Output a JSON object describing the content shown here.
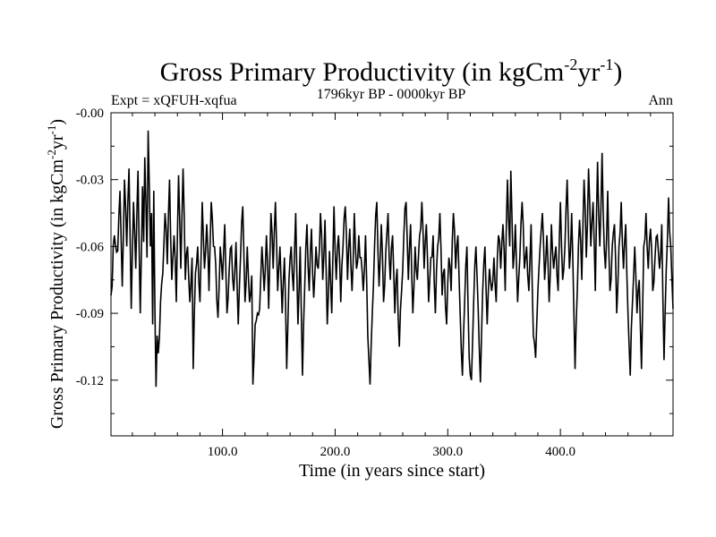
{
  "chart_data": {
    "type": "line",
    "title_main": "Gross Primary Productivity (in kgCm",
    "title_sup1": "-2",
    "title_mid": "yr",
    "title_sup2": "-1",
    "title_end": ")",
    "subtitle_left": "Expt = xQFUH-xqfua",
    "subtitle_center": "1796kyr BP - 0000kyr BP",
    "subtitle_right": "Ann",
    "xlabel": "Time (in years since start)",
    "ylabel_main": "Gross Primary Productivity (in kgCm",
    "ylabel_sup1": "-2",
    "ylabel_mid": "yr",
    "ylabel_sup2": "-1",
    "ylabel_end": ")",
    "xlim": [
      1,
      500
    ],
    "ylim": [
      -0.145,
      0.0
    ],
    "xticks": [
      100,
      200,
      300,
      400
    ],
    "xtick_labels": [
      "100.0",
      "200.0",
      "300.0",
      "400.0"
    ],
    "yticks": [
      0.0,
      -0.03,
      -0.06,
      -0.09,
      -0.12
    ],
    "ytick_labels": [
      "-0.00",
      "-0.03",
      "-0.06",
      "-0.09",
      "-0.12"
    ],
    "anchors": [
      [
        1,
        -0.082
      ],
      [
        4,
        -0.055
      ],
      [
        7,
        -0.062
      ],
      [
        9,
        -0.035
      ],
      [
        11,
        -0.078
      ],
      [
        13,
        -0.03
      ],
      [
        15,
        -0.06
      ],
      [
        17,
        -0.025
      ],
      [
        19,
        -0.088
      ],
      [
        21,
        -0.04
      ],
      [
        23,
        -0.07
      ],
      [
        25,
        -0.026
      ],
      [
        27,
        -0.09
      ],
      [
        29,
        -0.033
      ],
      [
        30,
        -0.058
      ],
      [
        31,
        -0.02
      ],
      [
        33,
        -0.065
      ],
      [
        34,
        -0.008
      ],
      [
        36,
        -0.06
      ],
      [
        37,
        -0.045
      ],
      [
        38,
        -0.095
      ],
      [
        39,
        -0.035
      ],
      [
        40,
        -0.088
      ],
      [
        41,
        -0.123
      ],
      [
        42,
        -0.1
      ],
      [
        43,
        -0.108
      ],
      [
        45,
        -0.085
      ],
      [
        47,
        -0.072
      ],
      [
        49,
        -0.045
      ],
      [
        51,
        -0.068
      ],
      [
        53,
        -0.03
      ],
      [
        55,
        -0.075
      ],
      [
        57,
        -0.055
      ],
      [
        59,
        -0.085
      ],
      [
        61,
        -0.028
      ],
      [
        63,
        -0.07
      ],
      [
        65,
        -0.025
      ],
      [
        67,
        -0.075
      ],
      [
        69,
        -0.06
      ],
      [
        71,
        -0.085
      ],
      [
        73,
        -0.065
      ],
      [
        74,
        -0.115
      ],
      [
        76,
        -0.072
      ],
      [
        78,
        -0.06
      ],
      [
        80,
        -0.085
      ],
      [
        82,
        -0.04
      ],
      [
        84,
        -0.07
      ],
      [
        86,
        -0.05
      ],
      [
        88,
        -0.08
      ],
      [
        90,
        -0.04
      ],
      [
        92,
        -0.06
      ],
      [
        94,
        -0.068
      ],
      [
        96,
        -0.092
      ],
      [
        98,
        -0.06
      ],
      [
        100,
        -0.075
      ],
      [
        102,
        -0.05
      ],
      [
        104,
        -0.09
      ],
      [
        106,
        -0.07
      ],
      [
        108,
        -0.06
      ],
      [
        110,
        -0.08
      ],
      [
        112,
        -0.058
      ],
      [
        114,
        -0.095
      ],
      [
        116,
        -0.065
      ],
      [
        118,
        -0.042
      ],
      [
        120,
        -0.085
      ],
      [
        122,
        -0.06
      ],
      [
        124,
        -0.085
      ],
      [
        126,
        -0.073
      ],
      [
        127,
        -0.122
      ],
      [
        129,
        -0.095
      ],
      [
        131,
        -0.09
      ],
      [
        133,
        -0.088
      ],
      [
        135,
        -0.06
      ],
      [
        137,
        -0.08
      ],
      [
        139,
        -0.055
      ],
      [
        141,
        -0.088
      ],
      [
        143,
        -0.045
      ],
      [
        145,
        -0.07
      ],
      [
        147,
        -0.04
      ],
      [
        149,
        -0.08
      ],
      [
        151,
        -0.06
      ],
      [
        153,
        -0.09
      ],
      [
        155,
        -0.065
      ],
      [
        157,
        -0.115
      ],
      [
        159,
        -0.075
      ],
      [
        161,
        -0.06
      ],
      [
        163,
        -0.08
      ],
      [
        165,
        -0.045
      ],
      [
        167,
        -0.095
      ],
      [
        169,
        -0.06
      ],
      [
        171,
        -0.118
      ],
      [
        173,
        -0.078
      ],
      [
        175,
        -0.05
      ],
      [
        177,
        -0.08
      ],
      [
        179,
        -0.052
      ],
      [
        181,
        -0.083
      ],
      [
        183,
        -0.06
      ],
      [
        185,
        -0.07
      ],
      [
        187,
        -0.045
      ],
      [
        189,
        -0.075
      ],
      [
        191,
        -0.048
      ],
      [
        193,
        -0.095
      ],
      [
        195,
        -0.062
      ],
      [
        197,
        -0.09
      ],
      [
        199,
        -0.042
      ],
      [
        201,
        -0.075
      ],
      [
        203,
        -0.055
      ],
      [
        205,
        -0.085
      ],
      [
        207,
        -0.06
      ],
      [
        209,
        -0.042
      ],
      [
        211,
        -0.075
      ],
      [
        213,
        -0.052
      ],
      [
        215,
        -0.08
      ],
      [
        217,
        -0.045
      ],
      [
        219,
        -0.07
      ],
      [
        221,
        -0.055
      ],
      [
        223,
        -0.065
      ],
      [
        225,
        -0.08
      ],
      [
        227,
        -0.055
      ],
      [
        229,
        -0.1
      ],
      [
        231,
        -0.122
      ],
      [
        233,
        -0.09
      ],
      [
        235,
        -0.06
      ],
      [
        237,
        -0.04
      ],
      [
        239,
        -0.078
      ],
      [
        241,
        -0.05
      ],
      [
        243,
        -0.085
      ],
      [
        245,
        -0.062
      ],
      [
        247,
        -0.045
      ],
      [
        249,
        -0.075
      ],
      [
        251,
        -0.055
      ],
      [
        253,
        -0.09
      ],
      [
        255,
        -0.07
      ],
      [
        257,
        -0.105
      ],
      [
        259,
        -0.08
      ],
      [
        261,
        -0.055
      ],
      [
        263,
        -0.04
      ],
      [
        265,
        -0.075
      ],
      [
        267,
        -0.05
      ],
      [
        269,
        -0.09
      ],
      [
        271,
        -0.06
      ],
      [
        273,
        -0.075
      ],
      [
        275,
        -0.055
      ],
      [
        277,
        -0.04
      ],
      [
        279,
        -0.07
      ],
      [
        281,
        -0.05
      ],
      [
        283,
        -0.085
      ],
      [
        285,
        -0.065
      ],
      [
        287,
        -0.055
      ],
      [
        289,
        -0.09
      ],
      [
        291,
        -0.06
      ],
      [
        293,
        -0.045
      ],
      [
        295,
        -0.082
      ],
      [
        297,
        -0.07
      ],
      [
        299,
        -0.095
      ],
      [
        301,
        -0.065
      ],
      [
        303,
        -0.08
      ],
      [
        305,
        -0.045
      ],
      [
        307,
        -0.07
      ],
      [
        309,
        -0.055
      ],
      [
        311,
        -0.09
      ],
      [
        313,
        -0.118
      ],
      [
        315,
        -0.085
      ],
      [
        317,
        -0.06
      ],
      [
        319,
        -0.11
      ],
      [
        321,
        -0.12
      ],
      [
        323,
        -0.085
      ],
      [
        325,
        -0.06
      ],
      [
        327,
        -0.088
      ],
      [
        329,
        -0.121
      ],
      [
        331,
        -0.08
      ],
      [
        333,
        -0.06
      ],
      [
        335,
        -0.095
      ],
      [
        337,
        -0.07
      ],
      [
        339,
        -0.08
      ],
      [
        341,
        -0.065
      ],
      [
        343,
        -0.085
      ],
      [
        345,
        -0.055
      ],
      [
        347,
        -0.07
      ],
      [
        349,
        -0.05
      ],
      [
        351,
        -0.08
      ],
      [
        353,
        -0.03
      ],
      [
        355,
        -0.06
      ],
      [
        356,
        -0.026
      ],
      [
        358,
        -0.07
      ],
      [
        360,
        -0.05
      ],
      [
        362,
        -0.085
      ],
      [
        364,
        -0.065
      ],
      [
        366,
        -0.04
      ],
      [
        368,
        -0.07
      ],
      [
        370,
        -0.06
      ],
      [
        372,
        -0.08
      ],
      [
        374,
        -0.05
      ],
      [
        376,
        -0.1
      ],
      [
        378,
        -0.11
      ],
      [
        380,
        -0.08
      ],
      [
        382,
        -0.06
      ],
      [
        384,
        -0.045
      ],
      [
        386,
        -0.075
      ],
      [
        388,
        -0.055
      ],
      [
        390,
        -0.085
      ],
      [
        392,
        -0.05
      ],
      [
        394,
        -0.07
      ],
      [
        396,
        -0.06
      ],
      [
        398,
        -0.08
      ],
      [
        400,
        -0.04
      ],
      [
        402,
        -0.075
      ],
      [
        404,
        -0.06
      ],
      [
        406,
        -0.03
      ],
      [
        408,
        -0.07
      ],
      [
        410,
        -0.045
      ],
      [
        412,
        -0.09
      ],
      [
        413,
        -0.115
      ],
      [
        415,
        -0.08
      ],
      [
        417,
        -0.048
      ],
      [
        419,
        -0.075
      ],
      [
        421,
        -0.03
      ],
      [
        423,
        -0.065
      ],
      [
        425,
        -0.025
      ],
      [
        427,
        -0.06
      ],
      [
        429,
        -0.04
      ],
      [
        431,
        -0.08
      ],
      [
        433,
        -0.022
      ],
      [
        435,
        -0.06
      ],
      [
        437,
        -0.018
      ],
      [
        438,
        -0.045
      ],
      [
        440,
        -0.07
      ],
      [
        442,
        -0.035
      ],
      [
        444,
        -0.08
      ],
      [
        446,
        -0.06
      ],
      [
        448,
        -0.05
      ],
      [
        450,
        -0.09
      ],
      [
        452,
        -0.06
      ],
      [
        454,
        -0.04
      ],
      [
        456,
        -0.07
      ],
      [
        458,
        -0.05
      ],
      [
        460,
        -0.09
      ],
      [
        462,
        -0.118
      ],
      [
        464,
        -0.085
      ],
      [
        466,
        -0.06
      ],
      [
        468,
        -0.09
      ],
      [
        470,
        -0.075
      ],
      [
        472,
        -0.115
      ],
      [
        474,
        -0.06
      ],
      [
        476,
        -0.045
      ],
      [
        478,
        -0.07
      ],
      [
        480,
        -0.052
      ],
      [
        482,
        -0.08
      ],
      [
        484,
        -0.065
      ],
      [
        486,
        -0.055
      ],
      [
        488,
        -0.07
      ],
      [
        490,
        -0.05
      ],
      [
        492,
        -0.111
      ],
      [
        494,
        -0.07
      ],
      [
        496,
        -0.038
      ],
      [
        498,
        -0.06
      ],
      [
        499,
        -0.075
      ],
      [
        500,
        -0.088
      ]
    ]
  }
}
